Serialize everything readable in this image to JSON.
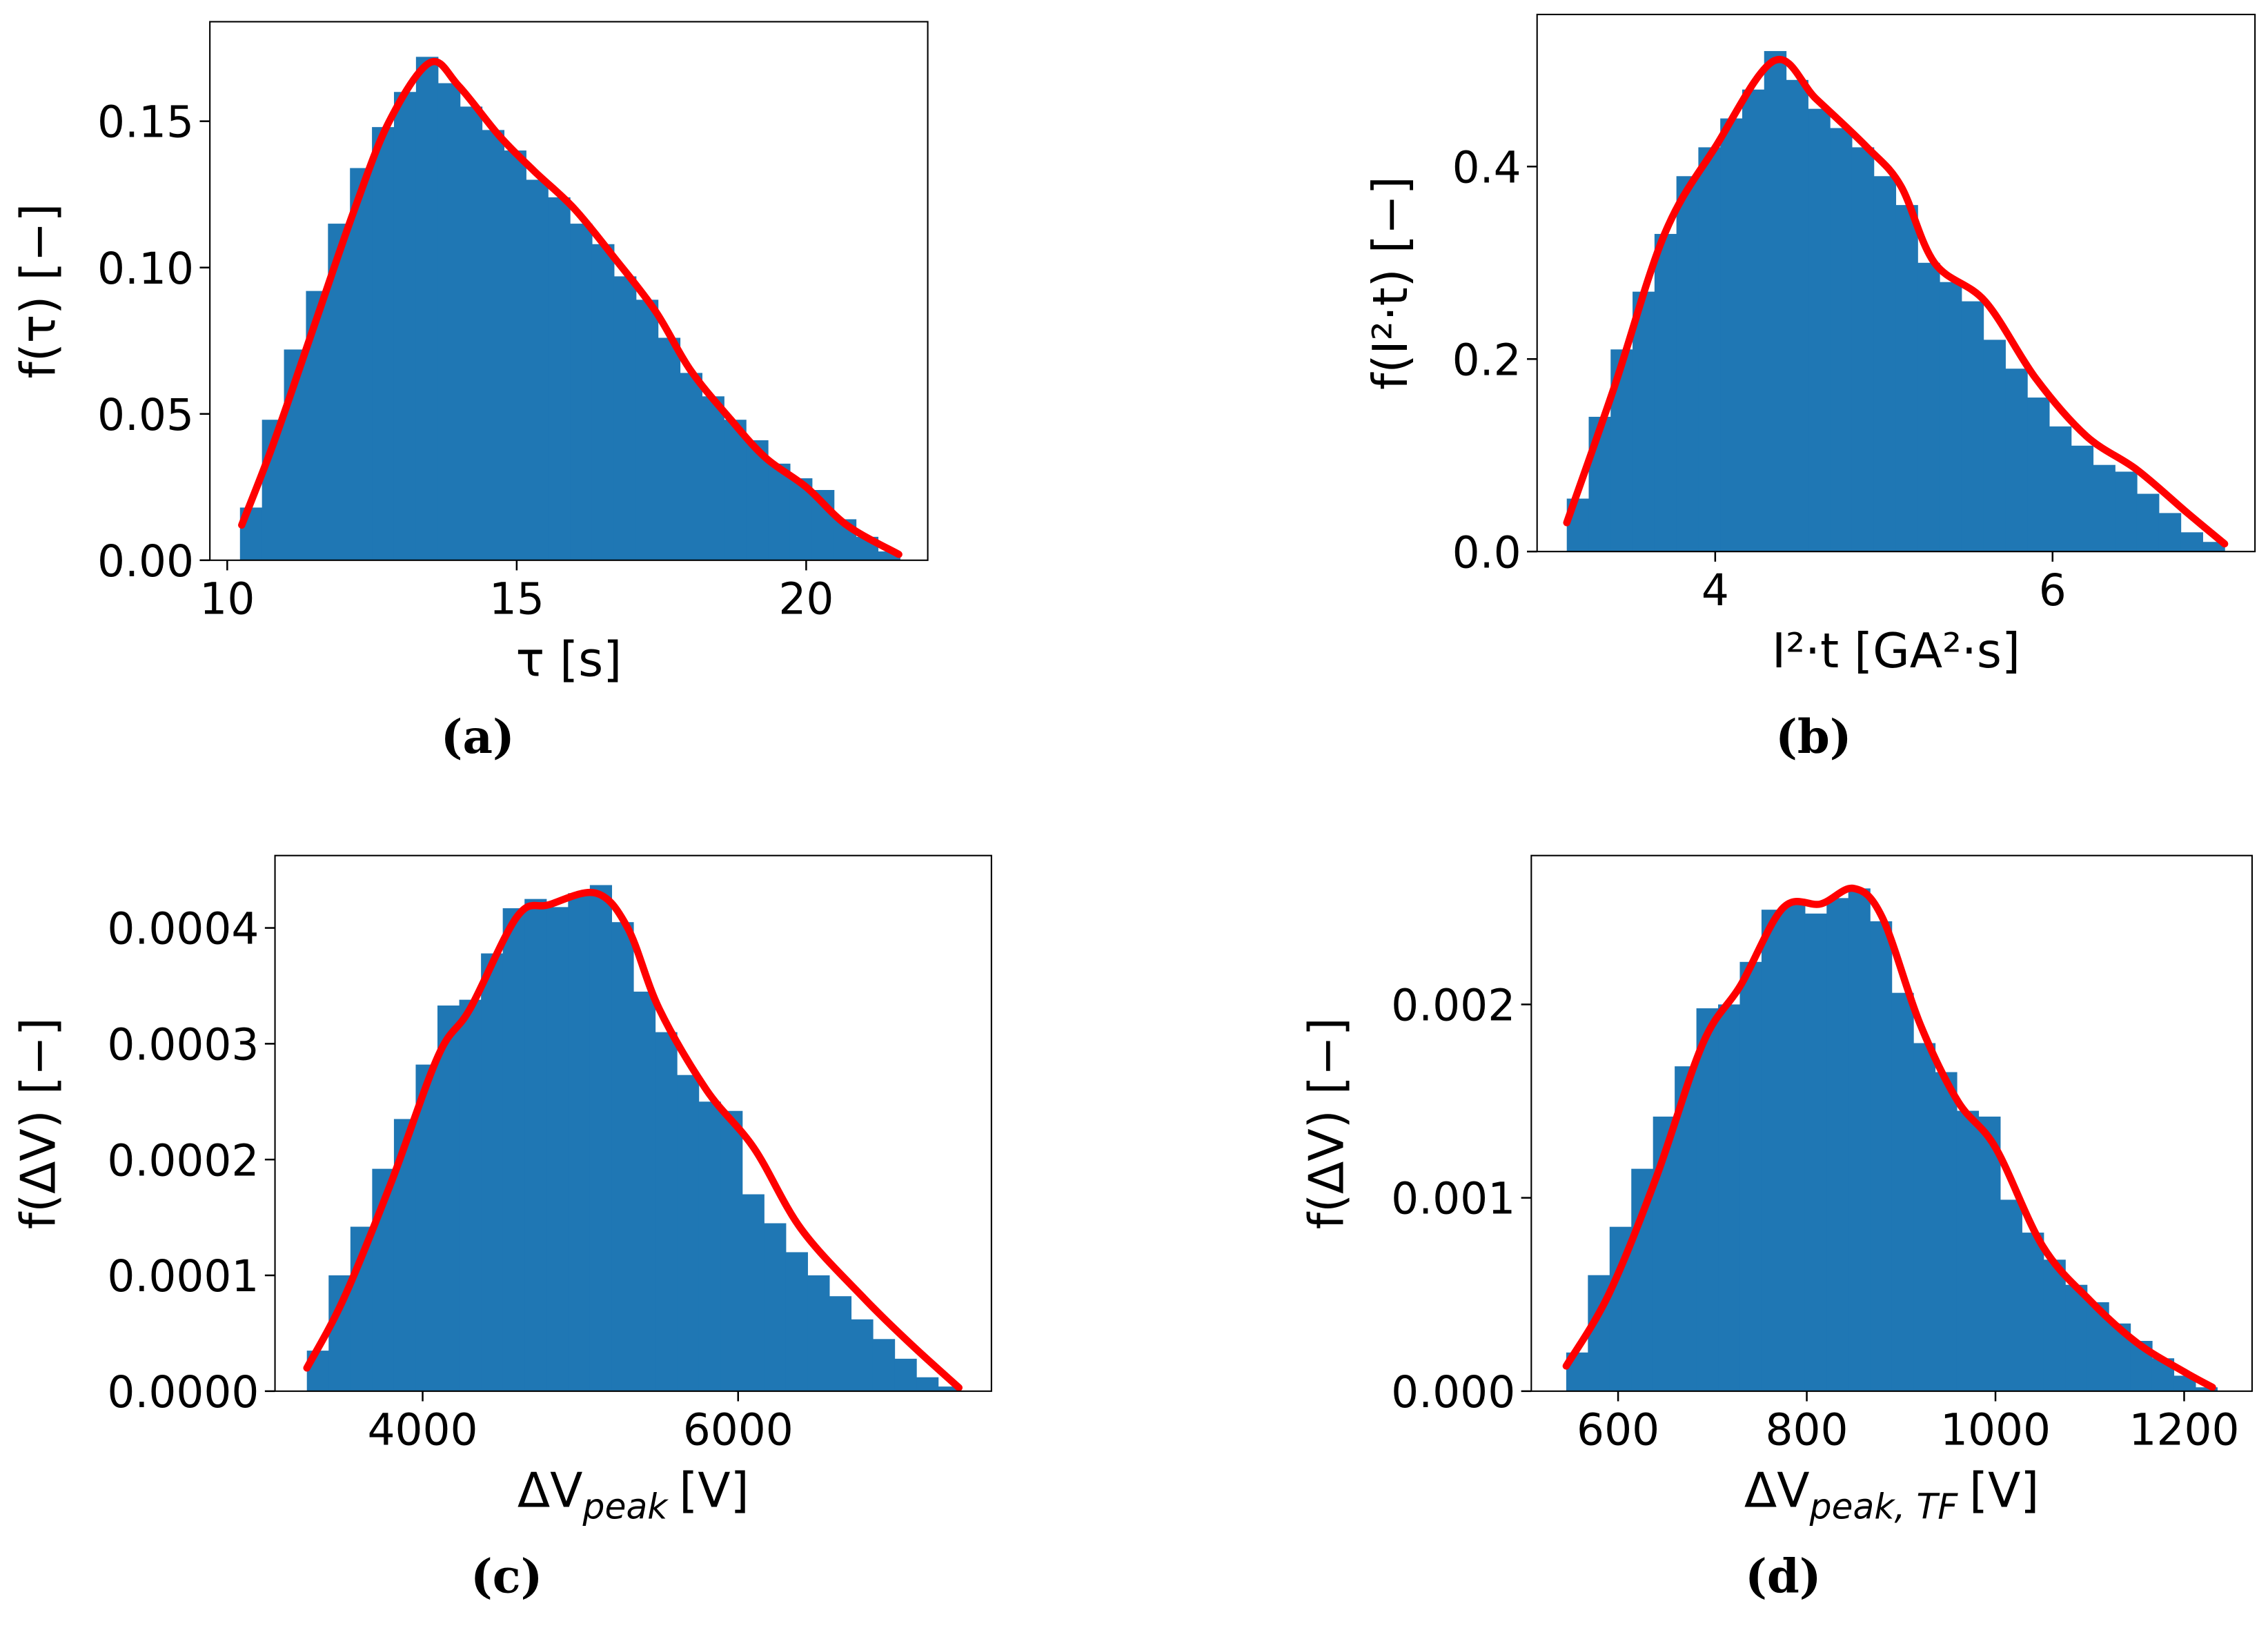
{
  "chart_data": [
    {
      "type": "histogram",
      "caption": "(a)",
      "ylabel": "f(τ) [−]",
      "xlabel": "τ [s]",
      "color": "#1f77b4",
      "bins": [
        10.22,
        10.6,
        10.98,
        11.36,
        11.74,
        12.12,
        12.5,
        12.88,
        13.26,
        13.64,
        14.02,
        14.4,
        14.78,
        15.16,
        15.54,
        15.92,
        16.3,
        16.68,
        17.06,
        17.44,
        17.82,
        18.2,
        18.58,
        18.96,
        19.34,
        19.72,
        20.1,
        20.48,
        20.86,
        21.24,
        21.62
      ],
      "values": [
        0.018,
        0.048,
        0.072,
        0.092,
        0.115,
        0.134,
        0.148,
        0.16,
        0.172,
        0.163,
        0.155,
        0.147,
        0.14,
        0.13,
        0.124,
        0.115,
        0.108,
        0.097,
        0.089,
        0.076,
        0.064,
        0.056,
        0.048,
        0.041,
        0.033,
        0.028,
        0.024,
        0.014,
        0.008,
        0.003
      ],
      "curve": {
        "color": "#ff0000",
        "x": [
          10.25,
          10.8,
          11.5,
          12.2,
          12.8,
          13.5,
          14.0,
          14.7,
          15.3,
          16.0,
          16.7,
          17.4,
          18.0,
          18.7,
          19.3,
          20.0,
          20.7,
          21.6
        ],
        "values": [
          0.012,
          0.04,
          0.08,
          0.12,
          0.15,
          0.17,
          0.162,
          0.145,
          0.133,
          0.12,
          0.103,
          0.085,
          0.065,
          0.048,
          0.035,
          0.025,
          0.012,
          0.002
        ]
      },
      "xlim": [
        9.7,
        22.1
      ],
      "xticks": [
        10,
        15,
        20
      ],
      "ylim": [
        0,
        0.184
      ],
      "yticks": [
        {
          "value": 0,
          "label": "0.00"
        },
        0.05,
        {
          "value": 0.1,
          "label": "0.10"
        },
        0.15
      ]
    },
    {
      "type": "histogram",
      "caption": "(b)",
      "ylabel": "f(I²·t) [−]",
      "xlabel": "I²·t [GA²·s]",
      "color": "#1f77b4",
      "bins": [
        3.12,
        3.25,
        3.38,
        3.51,
        3.64,
        3.77,
        3.9,
        4.03,
        4.16,
        4.29,
        4.42,
        4.55,
        4.68,
        4.81,
        4.94,
        5.07,
        5.2,
        5.33,
        5.46,
        5.59,
        5.72,
        5.85,
        5.98,
        6.11,
        6.24,
        6.37,
        6.5,
        6.63,
        6.76,
        6.89,
        7.02
      ],
      "values": [
        0.055,
        0.14,
        0.21,
        0.27,
        0.33,
        0.39,
        0.42,
        0.45,
        0.48,
        0.52,
        0.49,
        0.46,
        0.44,
        0.42,
        0.39,
        0.36,
        0.3,
        0.28,
        0.26,
        0.22,
        0.19,
        0.16,
        0.13,
        0.11,
        0.09,
        0.083,
        0.06,
        0.04,
        0.02,
        0.01
      ],
      "curve": {
        "color": "#ff0000",
        "x": [
          3.12,
          3.4,
          3.7,
          4.0,
          4.35,
          4.6,
          4.9,
          5.1,
          5.3,
          5.6,
          5.9,
          6.2,
          6.5,
          6.8,
          7.02
        ],
        "values": [
          0.03,
          0.17,
          0.33,
          0.42,
          0.51,
          0.47,
          0.42,
          0.38,
          0.3,
          0.26,
          0.18,
          0.12,
          0.085,
          0.04,
          0.008
        ]
      },
      "xlim": [
        2.944,
        7.2
      ],
      "xticks": [
        4,
        6
      ],
      "ylim": [
        0,
        0.558
      ],
      "yticks": [
        {
          "value": 0,
          "label": "0.0"
        },
        0.2,
        0.4
      ]
    },
    {
      "type": "histogram",
      "caption": "(c)",
      "ylabel": "f(ΔV) [−]",
      "xlabel": {
        "text": "ΔV",
        "sub": "peak",
        "unit": "[V]"
      },
      "color": "#1f77b4",
      "bins": [
        3266,
        3404,
        3542,
        3680,
        3818,
        3956,
        4094,
        4232,
        4370,
        4508,
        4646,
        4784,
        4922,
        5060,
        5198,
        5336,
        5474,
        5612,
        5750,
        5888,
        6026,
        6164,
        6302,
        6440,
        6578,
        6716,
        6854,
        6992,
        7130,
        7268,
        7406
      ],
      "values": [
        3.5e-05,
        0.0001,
        0.000142,
        0.000192,
        0.000235,
        0.000282,
        0.000333,
        0.000338,
        0.000378,
        0.000417,
        0.000425,
        0.000418,
        0.00043,
        0.000437,
        0.000405,
        0.000345,
        0.00031,
        0.000273,
        0.00025,
        0.000242,
        0.00017,
        0.000145,
        0.00012,
        0.0001,
        8.2e-05,
        6.2e-05,
        4.5e-05,
        2.8e-05,
        1.2e-05,
        4e-06
      ],
      "curve": {
        "color": "#ff0000",
        "x": [
          3266,
          3500,
          3800,
          4100,
          4300,
          4600,
          4800,
          5100,
          5300,
          5500,
          5800,
          6100,
          6400,
          6800,
          7100,
          7400
        ],
        "values": [
          2e-05,
          8e-05,
          0.00018,
          0.00029,
          0.00033,
          0.00041,
          0.00042,
          0.00043,
          0.0004,
          0.00033,
          0.00026,
          0.00021,
          0.00014,
          8e-05,
          4e-05,
          3e-06
        ]
      },
      "xlim": [
        3064,
        7606
      ],
      "xticks": [
        4000,
        6000
      ],
      "ylim": [
        0,
        0.0004625
      ],
      "yticks": [
        {
          "value": 0,
          "label": "0.0000"
        },
        0.0001,
        0.0002,
        0.0003,
        0.0004
      ]
    },
    {
      "type": "histogram",
      "caption": "(d)",
      "ylabel": "f(ΔV) [−]",
      "xlabel": {
        "text": "ΔV",
        "sub": "peak, TF",
        "unit": "[V]"
      },
      "color": "#1f77b4",
      "bins": [
        545,
        568,
        591,
        614,
        637,
        660,
        683,
        706,
        729,
        752,
        775,
        798,
        821,
        844,
        867,
        890,
        913,
        936,
        959,
        982,
        1005,
        1028,
        1051,
        1074,
        1097,
        1120,
        1143,
        1166,
        1189,
        1212,
        1235
      ],
      "values": [
        0.0002,
        0.0006,
        0.00085,
        0.00115,
        0.00142,
        0.00168,
        0.00198,
        0.002,
        0.00222,
        0.00249,
        0.00252,
        0.00247,
        0.00255,
        0.0026,
        0.00243,
        0.00206,
        0.0018,
        0.00165,
        0.00145,
        0.00142,
        0.00099,
        0.00082,
        0.00068,
        0.00055,
        0.00046,
        0.00035,
        0.00026,
        0.00017,
        8e-05,
        2e-05
      ],
      "curve": {
        "color": "#ff0000",
        "x": [
          545,
          590,
          640,
          690,
          730,
          775,
          815,
          850,
          880,
          920,
          960,
          1000,
          1050,
          1100,
          1150,
          1200,
          1230
        ],
        "values": [
          0.00013,
          0.0005,
          0.0011,
          0.0018,
          0.0021,
          0.0025,
          0.00252,
          0.0026,
          0.00245,
          0.0019,
          0.0015,
          0.00126,
          0.00075,
          0.00047,
          0.00025,
          0.0001,
          2e-05
        ]
      },
      "xlim": [
        508,
        1272
      ],
      "xticks": [
        600,
        800,
        1000,
        1200
      ],
      "ylim": [
        0,
        0.00277
      ],
      "yticks": [
        {
          "value": 0,
          "label": "0.000"
        },
        0.001,
        0.002
      ]
    }
  ]
}
